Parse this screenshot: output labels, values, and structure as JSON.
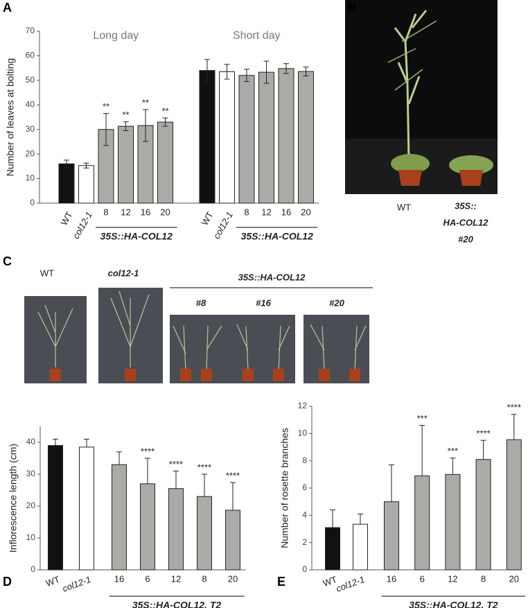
{
  "chart_data": [
    {
      "type": "bar",
      "panel": "A",
      "ylabel": "Number of leaves at bolting",
      "categories": [
        "WT",
        "col12-1",
        "8",
        "12",
        "16",
        "20",
        "WT",
        "col12-1",
        "8",
        "12",
        "16",
        "20"
      ],
      "values": [
        16,
        15.3,
        30,
        31.3,
        31.6,
        33,
        54,
        53.5,
        52,
        53.3,
        54.8,
        53.6
      ],
      "errors": [
        1.5,
        1,
        6.5,
        1.8,
        6.5,
        1.7,
        4.5,
        3,
        2.5,
        4.5,
        2,
        1.8
      ],
      "error_bars": "both",
      "colors": [
        "#111111",
        "#ffffff",
        "#a9aca6",
        "#a9aca6",
        "#a9aca6",
        "#a9aca6",
        "#111111",
        "#ffffff",
        "#a9aca6",
        "#a9aca6",
        "#a9aca6",
        "#a9aca6"
      ],
      "significance": [
        null,
        null,
        "**",
        "**",
        "**",
        "**",
        null,
        null,
        null,
        null,
        null,
        null
      ],
      "groups": [
        {
          "title": "Long day",
          "label": "35S::HA-COL12"
        },
        {
          "title": "Short day",
          "label": "35S::HA-COL12"
        }
      ],
      "ylim": [
        0,
        70
      ],
      "yticks": [
        0,
        10,
        20,
        30,
        40,
        50,
        60,
        70
      ]
    },
    {
      "type": "bar",
      "panel": "D",
      "ylabel": "Inflorescence length (cm)",
      "categories": [
        "WT",
        "col12-1",
        "16",
        "6",
        "12",
        "8",
        "20"
      ],
      "values": [
        39,
        38.5,
        33,
        27,
        25.5,
        23,
        18.7
      ],
      "errors": [
        2,
        2.5,
        4,
        8,
        5.5,
        7,
        8.7
      ],
      "error_bars": "upper",
      "colors": [
        "#111111",
        "#ffffff",
        "#a9aca6",
        "#a9aca6",
        "#a9aca6",
        "#a9aca6",
        "#a9aca6"
      ],
      "significance": [
        null,
        null,
        null,
        "****",
        "****",
        "****",
        "****"
      ],
      "groups": [
        {
          "label": "35S::HA-COL12, T2"
        }
      ],
      "ylim": [
        0,
        45
      ],
      "yticks": [
        0,
        10,
        20,
        30,
        40
      ]
    },
    {
      "type": "bar",
      "panel": "E",
      "ylabel": "Number of rosette branches",
      "categories": [
        "WT",
        "col12-1",
        "16",
        "6",
        "12",
        "8",
        "20"
      ],
      "values": [
        3.1,
        3.35,
        5,
        6.9,
        7,
        8.1,
        9.55
      ],
      "errors": [
        1.3,
        0.75,
        2.7,
        3.7,
        1.2,
        1.4,
        1.85
      ],
      "error_bars": "upper",
      "colors": [
        "#111111",
        "#ffffff",
        "#a9aca6",
        "#a9aca6",
        "#a9aca6",
        "#a9aca6",
        "#a9aca6"
      ],
      "significance": [
        null,
        null,
        null,
        "***",
        "***",
        "****",
        "****"
      ],
      "groups": [
        {
          "label": "35S::HA-COL12, T2"
        }
      ],
      "ylim": [
        0,
        12
      ],
      "yticks": [
        0,
        2,
        4,
        6,
        8,
        10,
        12
      ]
    }
  ],
  "photo_panels": [
    {
      "panel": "B",
      "labels": [
        "WT"
      ],
      "label_lines": [
        "35S::",
        "HA-COL12",
        "#20"
      ]
    },
    {
      "panel": "C",
      "labels": [
        "WT",
        "col12-1"
      ],
      "group": "35S::HA-COL12",
      "lines": [
        "#8",
        "#16",
        "#20"
      ]
    }
  ]
}
